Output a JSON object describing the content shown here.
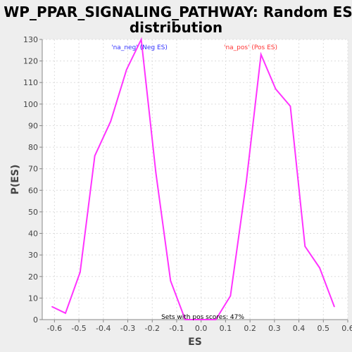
{
  "chart_data": {
    "type": "line",
    "title_line1": "WP_PPAR_SIGNALING_PATHWAY: Random ES",
    "title_line2": "distribution",
    "xlabel": "ES",
    "ylabel": "P(ES)",
    "xlim": [
      -0.65,
      0.6
    ],
    "ylim": [
      0,
      130
    ],
    "x_ticks": [
      -0.6,
      -0.5,
      -0.4,
      -0.3,
      -0.2,
      -0.1,
      0.0,
      0.1,
      0.2,
      0.3,
      0.4,
      0.5,
      0.6
    ],
    "y_ticks": [
      0,
      10,
      20,
      30,
      40,
      50,
      60,
      70,
      80,
      90,
      100,
      110,
      120,
      130
    ],
    "grid": true,
    "series": [
      {
        "color": "#ff33ff",
        "x": [
          -0.61,
          -0.555,
          -0.495,
          -0.435,
          -0.37,
          -0.305,
          -0.245,
          -0.185,
          -0.125,
          -0.065,
          0.0,
          0.06,
          0.12,
          0.185,
          0.245,
          0.305,
          0.365,
          0.425,
          0.485,
          0.545
        ],
        "y": [
          6,
          3,
          22,
          76,
          92,
          116,
          130,
          68,
          18,
          0,
          0,
          0,
          11,
          64,
          123,
          107,
          99,
          34,
          24,
          6
        ]
      }
    ],
    "annotations": {
      "neg": {
        "text": "'na_neg' (Neg ES)",
        "color": "#3333ff"
      },
      "pos": {
        "text": "'na_pos' (Pos ES)",
        "color": "#ff3333"
      },
      "footer": {
        "text": "Sets with pos scores: 47%",
        "color": "#000000"
      }
    }
  }
}
